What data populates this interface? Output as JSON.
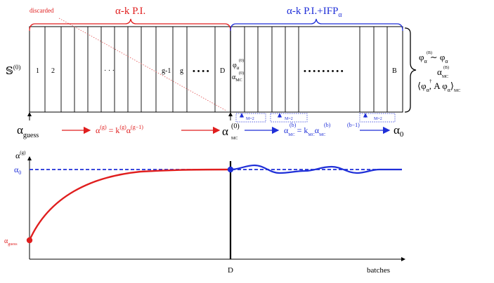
{
  "colors": {
    "red": "#e01e1e",
    "blue": "#1f2fd8",
    "black": "#000000",
    "dotted_red": "#e05050"
  },
  "top": {
    "discarded_label": "discarded",
    "phase1_title": "α-k P.I.",
    "phase2_title": "α-k P.I.+IFP",
    "phase2_title_sub": "α",
    "source_label": "𝕊",
    "source_sup": "(0)",
    "batch_labels_left": [
      "1",
      "2",
      "· · ·",
      "g-1",
      "g",
      "• • • •",
      "D"
    ],
    "mc_phi_label": "φ",
    "mc_phi_sub": "α",
    "mc_phi_sup": "(0)",
    "mc_alpha_label": "α",
    "mc_alpha_sub": "MC",
    "mc_alpha_sup": "(0)",
    "right_dots": "• • • • • • • • •",
    "right_last": "B",
    "m_labels": [
      "M=2",
      "M=2",
      "M=2"
    ],
    "rhs_line1": "φ",
    "rhs_line1_sup": "(B)",
    "rhs_line1_sub": "α",
    "rhs_line1_rel": "∼ φ",
    "rhs_line1_rel_sub": "α",
    "rhs_line2": "α",
    "rhs_line2_sup": "(B)",
    "rhs_line2_sub": "MC",
    "rhs_line3": "⟨φ",
    "rhs_line3_sup": "†",
    "rhs_line3_mid": "α",
    "rhs_line3_rest": ", A φ",
    "rhs_line3_rest_sub": "α",
    "rhs_line3_end": "⟩",
    "rhs_line3_end_sub": "MC"
  },
  "flow": {
    "alpha_guess": "α",
    "alpha_guess_sub": "guess",
    "red_formula": "α",
    "red_formula_sup": "(g)",
    "red_formula_eq": " = k",
    "red_formula_k_sup": "(g)",
    "red_formula_a2": "α",
    "red_formula_a2_sup": "(g−1)",
    "alpha_mc0": "α",
    "alpha_mc0_sup": "(0)",
    "alpha_mc0_sub": "MC",
    "blue_formula_a": "α",
    "blue_formula_a_sup": "(b)",
    "blue_formula_a_sub": "MC",
    "blue_formula_eq": " = k",
    "blue_formula_k_sup": "(b)",
    "blue_formula_k_sub": "MC",
    "blue_formula_a2": "α",
    "blue_formula_a2_sup": "(b−1)",
    "blue_formula_a2_sub": "MC",
    "alpha0": "α",
    "alpha0_sub": "0"
  },
  "plot": {
    "y_label": "α",
    "y_label_sup": "(g)",
    "alpha0_label": "α",
    "alpha0_sub": "0",
    "alpha_guess_label": "α",
    "alpha_guess_sub": "guess",
    "x_tick_D": "D",
    "x_label": "batches"
  }
}
